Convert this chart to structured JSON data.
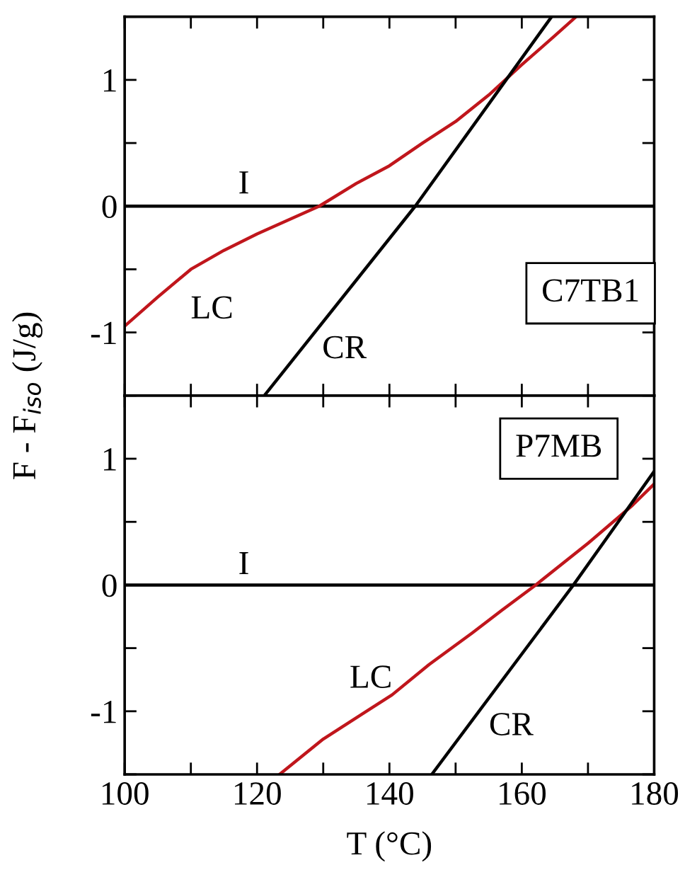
{
  "chart_data": [
    {
      "type": "line",
      "title": "C7TB1",
      "ylabel": "F - F$_{iso}$ (J/g)",
      "tick_labels": "y",
      "grid": false,
      "marker": "none",
      "line_style": "solid",
      "xlim": [
        100,
        180
      ],
      "ylim": [
        -1.5,
        1.5
      ],
      "xticks": [
        {
          "value": 100,
          "label": null
        },
        {
          "value": 110,
          "label": null
        },
        {
          "value": 120,
          "label": null
        },
        {
          "value": 130,
          "label": null
        },
        {
          "value": 140,
          "label": null
        },
        {
          "value": 150,
          "label": null
        },
        {
          "value": 160,
          "label": null
        },
        {
          "value": 170,
          "label": null
        },
        {
          "value": 180,
          "label": null
        }
      ],
      "yticks": [
        {
          "value": -1.5,
          "label": null
        },
        -1,
        {
          "value": -0.5,
          "label": null
        },
        0,
        {
          "value": 0.5,
          "label": null
        },
        1,
        {
          "value": 1.5,
          "label": null
        }
      ],
      "series": [
        {
          "name": "I",
          "color": "#000000",
          "x": [
            100,
            180
          ],
          "values": [
            0,
            0
          ]
        },
        {
          "name": "LC",
          "color": "#c0161c",
          "x": [
            100,
            105,
            110,
            115,
            120,
            129.4,
            135,
            140,
            145,
            150,
            155,
            160,
            165,
            168.2
          ],
          "values": [
            -0.95,
            -0.72,
            -0.5,
            -0.35,
            -0.22,
            0,
            0.18,
            0.32,
            0.5,
            0.67,
            0.88,
            1.12,
            1.35,
            1.5
          ]
        },
        {
          "name": "CR",
          "color": "#000000",
          "x": [
            121.1,
            143.9,
            164.5
          ],
          "values": [
            -1.5,
            0,
            1.5
          ]
        }
      ]
    },
    {
      "type": "line",
      "title": "P7MB",
      "xlabel": "T (°C)",
      "grid": false,
      "marker": "none",
      "line_style": "solid",
      "xlim": [
        100,
        180
      ],
      "ylim": [
        -1.5,
        1.5
      ],
      "xticks": [
        100,
        {
          "value": 110,
          "label": null
        },
        120,
        {
          "value": 130,
          "label": null
        },
        140,
        {
          "value": 150,
          "label": null
        },
        160,
        {
          "value": 170,
          "label": null
        },
        180
      ],
      "yticks": [
        {
          "value": -1.5,
          "label": null
        },
        -1,
        {
          "value": -0.5,
          "label": null
        },
        0,
        {
          "value": 0.5,
          "label": null
        },
        1,
        {
          "value": 1.5,
          "label": null
        }
      ],
      "series": [
        {
          "name": "I",
          "color": "#000000",
          "x": [
            100,
            180
          ],
          "values": [
            0,
            0
          ]
        },
        {
          "name": "LC",
          "color": "#c0161c",
          "x": [
            123.4,
            130,
            140.4,
            146,
            152.5,
            157,
            162.1,
            170,
            176.7,
            180
          ],
          "values": [
            -1.5,
            -1.22,
            -0.87,
            -0.63,
            -0.38,
            -0.2,
            0,
            0.33,
            0.63,
            0.8
          ]
        },
        {
          "name": "CR",
          "color": "#000000",
          "x": [
            146.4,
            167.8,
            180
          ],
          "values": [
            -1.5,
            0,
            0.9
          ]
        }
      ]
    }
  ]
}
